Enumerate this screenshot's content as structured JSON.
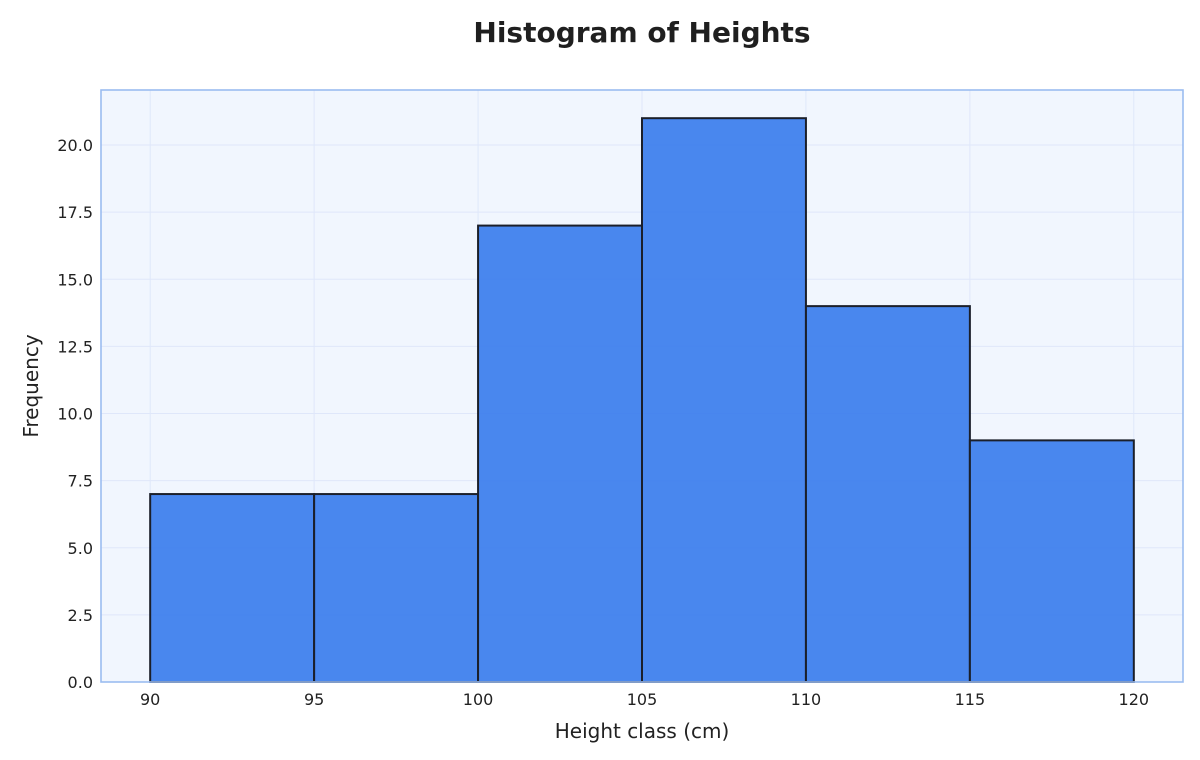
{
  "chart_data": {
    "type": "bar",
    "title": "Histogram of Heights",
    "xlabel": "Height class (cm)",
    "ylabel": "Frequency",
    "bins": [
      {
        "start": 90,
        "end": 95,
        "value": 7
      },
      {
        "start": 95,
        "end": 100,
        "value": 7
      },
      {
        "start": 100,
        "end": 105,
        "value": 17
      },
      {
        "start": 105,
        "end": 110,
        "value": 21
      },
      {
        "start": 110,
        "end": 115,
        "value": 14
      },
      {
        "start": 115,
        "end": 120,
        "value": 9
      }
    ],
    "x_ticks": [
      "90",
      "95",
      "100",
      "105",
      "110",
      "115",
      "120"
    ],
    "y_ticks": [
      "0.0",
      "2.5",
      "5.0",
      "7.5",
      "10.0",
      "12.5",
      "15.0",
      "17.5",
      "20.0"
    ],
    "xlim": [
      88.5,
      121.5
    ],
    "ylim": [
      0,
      22.05
    ],
    "grid": true,
    "colors": {
      "bar_fill": "#3b7ded",
      "bar_edge": "#1b1f2a",
      "plot_background": "#f1f6fe",
      "plot_border": "#9bbcf0",
      "grid": "#dfe7fa"
    }
  }
}
